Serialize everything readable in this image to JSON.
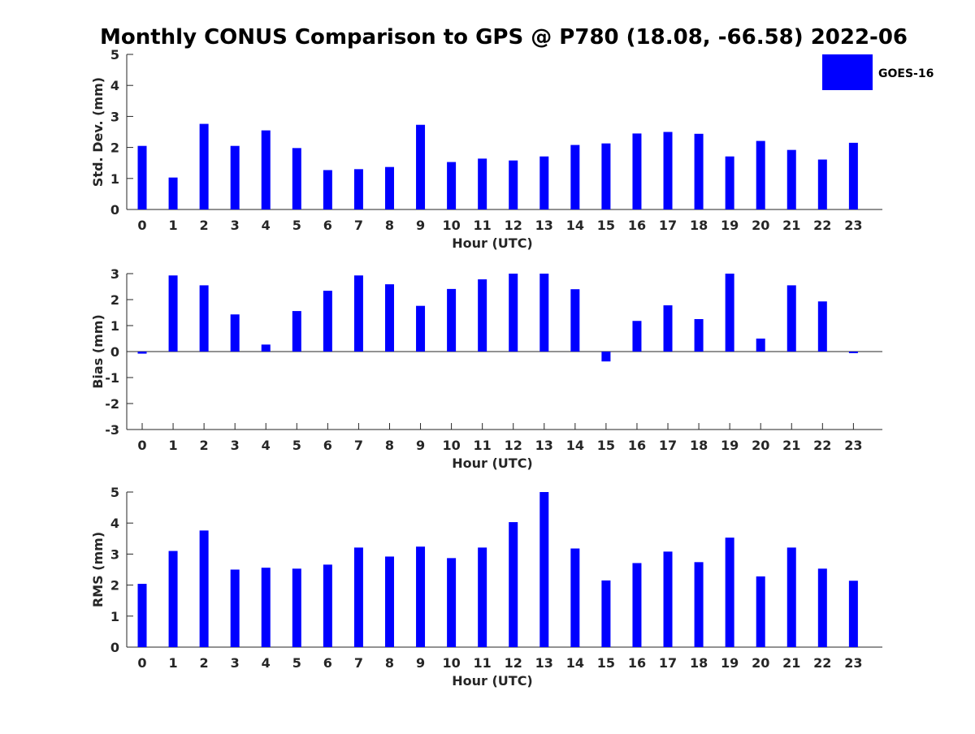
{
  "chart_data": {
    "type": "bar",
    "title": "Monthly CONUS Comparison to GPS @ P780 (18.08, -66.58) 2022-06",
    "legend": {
      "label": "GOES-16",
      "placement": "top-right"
    },
    "bar_color": "#0000ff",
    "categories": [
      "0",
      "1",
      "2",
      "3",
      "4",
      "5",
      "6",
      "7",
      "8",
      "9",
      "10",
      "11",
      "12",
      "13",
      "14",
      "15",
      "16",
      "17",
      "18",
      "19",
      "20",
      "21",
      "22",
      "23"
    ],
    "panels": [
      {
        "id": "stddev",
        "ylabel": "Std. Dev. (mm)",
        "xlabel": "Hour (UTC)",
        "ylim": [
          0,
          5
        ],
        "yticks": [
          0,
          1,
          2,
          3,
          4,
          5
        ],
        "values": [
          2.05,
          1.03,
          2.76,
          2.05,
          2.55,
          1.98,
          1.27,
          1.3,
          1.37,
          2.73,
          1.53,
          1.64,
          1.58,
          1.71,
          2.08,
          2.13,
          2.45,
          2.5,
          2.44,
          1.71,
          2.21,
          1.92,
          1.61,
          2.15
        ]
      },
      {
        "id": "bias",
        "ylabel": "Bias (mm)",
        "xlabel": "Hour (UTC)",
        "ylim": [
          -3,
          3
        ],
        "yticks": [
          -3,
          -2,
          -1,
          0,
          1,
          2,
          3
        ],
        "values": [
          -0.08,
          2.93,
          2.55,
          1.43,
          0.27,
          1.56,
          2.34,
          2.93,
          2.59,
          1.76,
          2.41,
          2.78,
          3.0,
          3.0,
          2.4,
          -0.38,
          1.18,
          1.78,
          1.25,
          3.0,
          0.5,
          2.55,
          1.93,
          -0.06
        ]
      },
      {
        "id": "rms",
        "ylabel": "RMS (mm)",
        "xlabel": "Hour (UTC)",
        "ylim": [
          0,
          5
        ],
        "yticks": [
          0,
          1,
          2,
          3,
          4,
          5
        ],
        "values": [
          2.04,
          3.1,
          3.76,
          2.5,
          2.56,
          2.53,
          2.66,
          3.21,
          2.92,
          3.24,
          2.87,
          3.21,
          4.03,
          5.0,
          3.18,
          2.15,
          2.71,
          3.08,
          2.74,
          3.53,
          2.28,
          3.21,
          2.53,
          2.14
        ]
      }
    ]
  }
}
